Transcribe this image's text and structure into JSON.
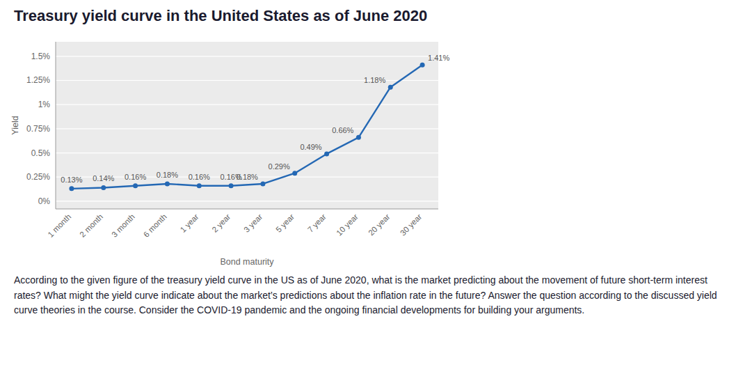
{
  "chart_data": {
    "type": "line",
    "title": "Treasury yield curve in the United States as of June 2020",
    "x_label": "Bond maturity",
    "y_label": "Yield",
    "categories": [
      "1 month",
      "2 month",
      "3 month",
      "6 month",
      "1 year",
      "2 year",
      "3 year",
      "5 year",
      "7 year",
      "10 year",
      "20 year",
      "30 year"
    ],
    "values": [
      0.13,
      0.14,
      0.16,
      0.18,
      0.16,
      0.16,
      0.18,
      0.29,
      0.49,
      0.66,
      1.18,
      1.41
    ],
    "value_labels": [
      "0.13%",
      "0.14%",
      "0.16%",
      "0.18%",
      "0.16%",
      "0.16%",
      "0.18%",
      "0.29%",
      "0.49%",
      "0.66%",
      "1.18%",
      "1.41%"
    ],
    "data_labels": true,
    "color": "#2468b4",
    "marker": "circle",
    "ylim": [
      -0.08,
      1.65
    ],
    "yticks": [
      {
        "value": 0.0,
        "label": "0%"
      },
      {
        "value": 0.25,
        "label": "0.25%"
      },
      {
        "value": 0.5,
        "label": "0.5%"
      },
      {
        "value": 0.75,
        "label": "0.75%"
      },
      {
        "value": 1.0,
        "label": "1%"
      },
      {
        "value": 1.25,
        "label": "1.25%"
      },
      {
        "value": 1.5,
        "label": "1.5%"
      }
    ],
    "grid": true,
    "annotations": [
      "According to the given figure of the treasury yield curve in the US as of June 2020, what is the market predicting about the movement of future short-term interest rates? What might the yield curve indicate about the market’s predictions about the inflation rate in the future? Answer the question according to the discussed yield curve theories in the course. Consider the COVID-19 pandemic and the ongoing financial developments for building your arguments."
    ]
  }
}
